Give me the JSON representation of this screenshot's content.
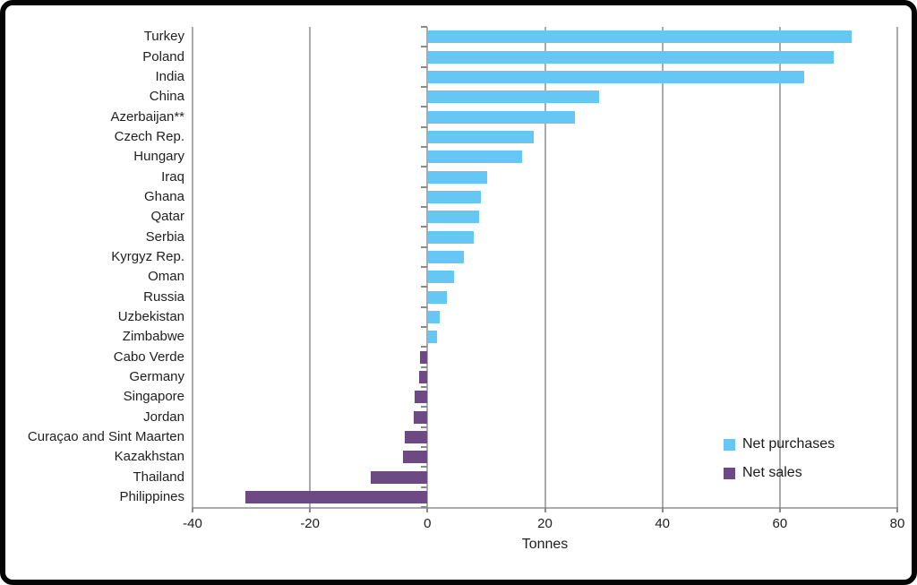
{
  "frame": {
    "border_color": "#050505"
  },
  "chart_data": {
    "type": "bar",
    "orientation": "horizontal",
    "title": "",
    "xlabel": "Tonnes",
    "xlim": [
      -40,
      80
    ],
    "xticks": [
      -40,
      -20,
      0,
      20,
      40,
      60,
      80
    ],
    "grid": true,
    "legend_position": "right-bottom",
    "categories": [
      "Turkey",
      "Poland",
      "India",
      "China",
      "Azerbaijan**",
      "Czech Rep.",
      "Hungary",
      "Iraq",
      "Ghana",
      "Qatar",
      "Serbia",
      "Kyrgyz Rep.",
      "Oman",
      "Russia",
      "Uzbekistan",
      "Zimbabwe",
      "Cabo Verde",
      "Germany",
      "Singapore",
      "Jordan",
      "Curaçao and Sint Maarten",
      "Kazakhstan",
      "Thailand",
      "Philippines"
    ],
    "values": [
      72,
      69,
      64,
      29,
      25,
      18,
      16,
      10,
      9,
      8.6,
      7.7,
      6,
      4.4,
      3.2,
      1.9,
      1.5,
      -1.2,
      -1.4,
      -2.2,
      -2.4,
      -3.9,
      -4.2,
      -9.6,
      -31
    ],
    "legend": [
      {
        "label": "Net purchases",
        "color": "#66C7F4",
        "applies_to": "positive"
      },
      {
        "label": "Net sales",
        "color": "#6D4A84",
        "applies_to": "negative"
      }
    ],
    "colors": {
      "positive_bar": "#66C7F4",
      "negative_bar": "#6D4A84",
      "gridline": "#ABABAB",
      "tick": "#8A8A8A",
      "text": "#1F1F1F"
    }
  }
}
